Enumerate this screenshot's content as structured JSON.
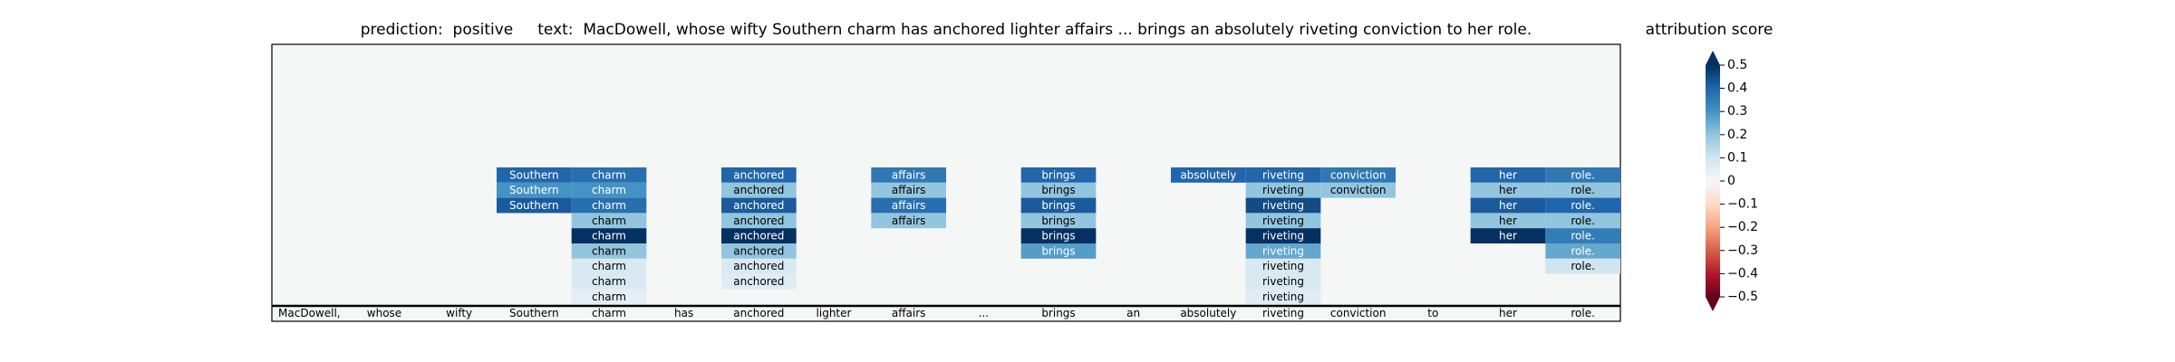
{
  "chart_data": {
    "type": "attribution",
    "title": "prediction:  positive     text:  MacDowell, whose wifty Southern charm has anchored lighter affairs ... brings an absolutely riveting conviction to her role.",
    "tokens": [
      "MacDowell,",
      "whose",
      "wifty",
      "Southern",
      "charm",
      "has",
      "anchored",
      "lighter",
      "affairs",
      "...",
      "brings",
      "an",
      "absolutely",
      "riveting",
      "conviction",
      "to",
      "her",
      "role."
    ],
    "cell_scores": [
      [],
      [],
      [],
      [
        0.4,
        0.3,
        0.42
      ],
      [
        0.38,
        0.3,
        0.38,
        0.2,
        0.5,
        0.2,
        0.08,
        0.08,
        0.05
      ],
      [],
      [
        0.4,
        0.2,
        0.42,
        0.2,
        0.5,
        0.2,
        0.08,
        0.06
      ],
      [],
      [
        0.36,
        0.2,
        0.38,
        0.2
      ],
      [],
      [
        0.4,
        0.2,
        0.42,
        0.2,
        0.5,
        0.28
      ],
      [],
      [
        0.4
      ],
      [
        0.4,
        0.2,
        0.45,
        0.2,
        0.5,
        0.26,
        0.08,
        0.08,
        0.06
      ],
      [
        0.36,
        0.2
      ],
      [],
      [
        0.4,
        0.2,
        0.42,
        0.2,
        0.5
      ],
      [
        0.36,
        0.2,
        0.4,
        0.2,
        0.35,
        0.26,
        0.1
      ]
    ],
    "colormap": "RdBu",
    "colorbar_label": "attribution score",
    "clim": [
      -0.5,
      0.5
    ],
    "cticks": [
      {
        "value": -0.5,
        "label": "−0.5"
      },
      {
        "value": -0.4,
        "label": "−0.4"
      },
      {
        "value": -0.3,
        "label": "−0.3"
      },
      {
        "value": -0.2,
        "label": "−0.2"
      },
      {
        "value": -0.1,
        "label": "−0.1"
      },
      0.0,
      0.1,
      0.2,
      0.3,
      0.4,
      0.5
    ]
  }
}
